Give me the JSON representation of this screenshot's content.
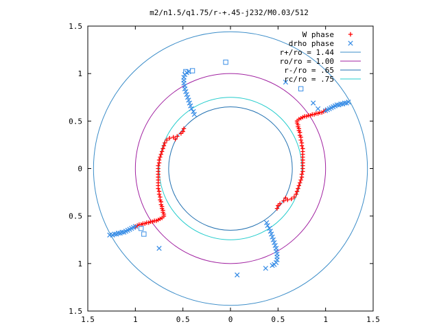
{
  "chart_data": {
    "type": "scatter",
    "title": "m2/n1.5/q1.75/r-+.45-j232/M0.03/512",
    "xlim": [
      -1.5,
      1.5
    ],
    "ylim": [
      -1.5,
      1.5
    ],
    "x_ticks": [
      {
        "value": -1.5,
        "label": "1.5"
      },
      {
        "value": -1.0,
        "label": "1"
      },
      {
        "value": -0.5,
        "label": "0.5"
      },
      {
        "value": 0.0,
        "label": "0"
      },
      {
        "value": 0.5,
        "label": "0.5"
      },
      {
        "value": 1.0,
        "label": "1"
      },
      {
        "value": 1.5,
        "label": "1.5"
      }
    ],
    "y_ticks": [
      {
        "value": -1.5,
        "label": "1.5"
      },
      {
        "value": -1.0,
        "label": "1"
      },
      {
        "value": -0.5,
        "label": "0.5"
      },
      {
        "value": 0.0,
        "label": "0"
      },
      {
        "value": 0.5,
        "label": "0.5"
      },
      {
        "value": 1.0,
        "label": "1"
      },
      {
        "value": 1.5,
        "label": "1.5"
      }
    ],
    "grid": false,
    "legend_position": "top-right",
    "circles": [
      {
        "name": "r+/ro = 1.44",
        "radius": 1.44,
        "color": "#3a8cc8"
      },
      {
        "name": "ro/ro = 1.00",
        "radius": 1.0,
        "color": "#a020a0"
      },
      {
        "name": "r-/ro = .65",
        "radius": 0.65,
        "color": "#1f6fb0"
      },
      {
        "name": "rc/ro = .75",
        "radius": 0.75,
        "color": "#22cccc"
      }
    ],
    "series": [
      {
        "name": "W phase",
        "marker": "plus",
        "color": "#ff0000",
        "points": [
          [
            0.7,
            0.5
          ],
          [
            0.7,
            0.48
          ],
          [
            0.71,
            0.46
          ],
          [
            0.71,
            0.44
          ],
          [
            0.72,
            0.42
          ],
          [
            0.72,
            0.4
          ],
          [
            0.73,
            0.38
          ],
          [
            0.73,
            0.35
          ],
          [
            0.74,
            0.33
          ],
          [
            0.74,
            0.3
          ],
          [
            0.75,
            0.27
          ],
          [
            0.75,
            0.24
          ],
          [
            0.76,
            0.21
          ],
          [
            0.76,
            0.18
          ],
          [
            0.76,
            0.15
          ],
          [
            0.76,
            0.12
          ],
          [
            0.76,
            0.09
          ],
          [
            0.76,
            0.06
          ],
          [
            0.76,
            0.03
          ],
          [
            0.76,
            0.0
          ],
          [
            0.76,
            -0.03
          ],
          [
            0.75,
            -0.06
          ],
          [
            0.75,
            -0.09
          ],
          [
            0.74,
            -0.12
          ],
          [
            0.73,
            -0.15
          ],
          [
            0.72,
            -0.18
          ],
          [
            0.71,
            -0.21
          ],
          [
            0.7,
            -0.24
          ],
          [
            0.69,
            -0.27
          ],
          [
            0.67,
            -0.3
          ],
          [
            0.64,
            -0.32
          ],
          [
            0.6,
            -0.33
          ],
          [
            0.58,
            -0.31
          ],
          [
            0.56,
            -0.34
          ],
          [
            0.52,
            -0.37
          ],
          [
            0.5,
            -0.39
          ],
          [
            0.49,
            -0.42
          ],
          [
            0.72,
            0.52
          ],
          [
            0.74,
            0.53
          ],
          [
            0.76,
            0.54
          ],
          [
            0.78,
            0.55
          ],
          [
            0.8,
            0.55
          ],
          [
            0.82,
            0.56
          ],
          [
            0.84,
            0.56
          ],
          [
            0.86,
            0.57
          ],
          [
            0.88,
            0.57
          ],
          [
            0.9,
            0.58
          ],
          [
            0.92,
            0.58
          ],
          [
            0.94,
            0.59
          ],
          [
            0.96,
            0.59
          ],
          [
            0.98,
            0.6
          ],
          [
            1.0,
            0.61
          ],
          [
            -0.7,
            -0.5
          ],
          [
            -0.7,
            -0.48
          ],
          [
            -0.71,
            -0.46
          ],
          [
            -0.71,
            -0.44
          ],
          [
            -0.72,
            -0.42
          ],
          [
            -0.72,
            -0.4
          ],
          [
            -0.73,
            -0.38
          ],
          [
            -0.73,
            -0.35
          ],
          [
            -0.74,
            -0.33
          ],
          [
            -0.74,
            -0.3
          ],
          [
            -0.75,
            -0.27
          ],
          [
            -0.75,
            -0.24
          ],
          [
            -0.76,
            -0.21
          ],
          [
            -0.76,
            -0.18
          ],
          [
            -0.76,
            -0.15
          ],
          [
            -0.76,
            -0.12
          ],
          [
            -0.76,
            -0.09
          ],
          [
            -0.76,
            -0.06
          ],
          [
            -0.76,
            -0.03
          ],
          [
            -0.76,
            0.0
          ],
          [
            -0.76,
            0.03
          ],
          [
            -0.75,
            0.06
          ],
          [
            -0.75,
            0.09
          ],
          [
            -0.74,
            0.12
          ],
          [
            -0.73,
            0.15
          ],
          [
            -0.72,
            0.18
          ],
          [
            -0.71,
            0.21
          ],
          [
            -0.7,
            0.24
          ],
          [
            -0.69,
            0.27
          ],
          [
            -0.67,
            0.3
          ],
          [
            -0.64,
            0.32
          ],
          [
            -0.6,
            0.33
          ],
          [
            -0.58,
            0.31
          ],
          [
            -0.56,
            0.34
          ],
          [
            -0.52,
            0.37
          ],
          [
            -0.5,
            0.39
          ],
          [
            -0.49,
            0.42
          ],
          [
            -0.72,
            -0.52
          ],
          [
            -0.74,
            -0.53
          ],
          [
            -0.76,
            -0.54
          ],
          [
            -0.78,
            -0.55
          ],
          [
            -0.8,
            -0.55
          ],
          [
            -0.82,
            -0.56
          ],
          [
            -0.84,
            -0.56
          ],
          [
            -0.86,
            -0.57
          ],
          [
            -0.88,
            -0.57
          ],
          [
            -0.9,
            -0.58
          ],
          [
            -0.92,
            -0.58
          ],
          [
            -0.94,
            -0.59
          ],
          [
            -0.96,
            -0.59
          ],
          [
            -0.98,
            -0.6
          ],
          [
            -1.0,
            -0.61
          ]
        ]
      },
      {
        "name": "drho phase",
        "marker": "cross",
        "color": "#3a8ee6",
        "points": [
          [
            1.0,
            0.61
          ],
          [
            1.02,
            0.62
          ],
          [
            1.04,
            0.63
          ],
          [
            1.06,
            0.64
          ],
          [
            1.08,
            0.65
          ],
          [
            1.1,
            0.66
          ],
          [
            1.12,
            0.67
          ],
          [
            1.14,
            0.67
          ],
          [
            1.16,
            0.68
          ],
          [
            1.18,
            0.68
          ],
          [
            1.2,
            0.69
          ],
          [
            1.22,
            0.69
          ],
          [
            1.24,
            0.7
          ],
          [
            0.38,
            -0.57
          ],
          [
            0.39,
            -0.6
          ],
          [
            0.41,
            -0.63
          ],
          [
            0.42,
            -0.66
          ],
          [
            0.43,
            -0.69
          ],
          [
            0.44,
            -0.72
          ],
          [
            0.45,
            -0.75
          ],
          [
            0.46,
            -0.78
          ],
          [
            0.47,
            -0.81
          ],
          [
            0.48,
            -0.84
          ],
          [
            0.48,
            -0.87
          ],
          [
            0.49,
            -0.9
          ],
          [
            0.49,
            -0.93
          ],
          [
            0.49,
            -0.96
          ],
          [
            0.48,
            -0.99
          ],
          [
            0.46,
            -1.01
          ],
          [
            0.44,
            -1.02
          ],
          [
            0.87,
            0.69
          ],
          [
            0.92,
            0.63
          ],
          [
            0.58,
            0.91
          ],
          [
            -0.75,
            -0.84
          ],
          [
            0.07,
            -1.12
          ],
          [
            0.37,
            -1.05
          ],
          [
            -1.0,
            -0.61
          ],
          [
            -1.02,
            -0.62
          ],
          [
            -1.04,
            -0.63
          ],
          [
            -1.06,
            -0.64
          ],
          [
            -1.08,
            -0.65
          ],
          [
            -1.1,
            -0.66
          ],
          [
            -1.12,
            -0.67
          ],
          [
            -1.14,
            -0.67
          ],
          [
            -1.16,
            -0.68
          ],
          [
            -1.18,
            -0.68
          ],
          [
            -1.2,
            -0.69
          ],
          [
            -1.22,
            -0.69
          ],
          [
            -1.24,
            -0.7
          ],
          [
            -1.27,
            -0.7
          ],
          [
            -0.38,
            0.57
          ],
          [
            -0.39,
            0.6
          ],
          [
            -0.41,
            0.63
          ],
          [
            -0.42,
            0.66
          ],
          [
            -0.43,
            0.69
          ],
          [
            -0.44,
            0.72
          ],
          [
            -0.45,
            0.75
          ],
          [
            -0.46,
            0.78
          ],
          [
            -0.47,
            0.81
          ],
          [
            -0.48,
            0.84
          ],
          [
            -0.48,
            0.87
          ],
          [
            -0.49,
            0.9
          ],
          [
            -0.49,
            0.93
          ],
          [
            -0.49,
            0.96
          ],
          [
            -0.48,
            0.99
          ],
          [
            -0.46,
            1.01
          ],
          [
            -0.44,
            1.02
          ]
        ]
      },
      {
        "name": "",
        "marker": "square",
        "color": "#3a8ee6",
        "points": [
          [
            -0.05,
            1.12
          ],
          [
            -0.4,
            1.03
          ],
          [
            -0.47,
            1.02
          ],
          [
            0.74,
            0.84
          ],
          [
            -0.91,
            -0.69
          ],
          [
            -0.94,
            -0.63
          ]
        ]
      }
    ]
  }
}
